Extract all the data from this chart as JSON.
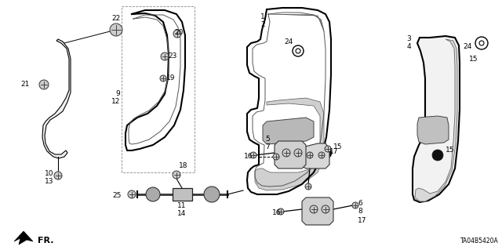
{
  "bg_color": "#ffffff",
  "diagram_id": "TA04B5420A",
  "fig_width": 6.4,
  "fig_height": 3.19,
  "dpi": 100,
  "label_fontsize": 7.0,
  "line_color": "#000000"
}
